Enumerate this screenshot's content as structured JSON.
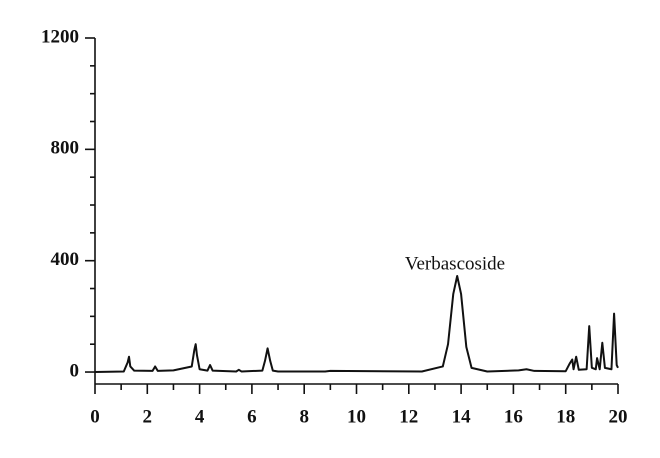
{
  "chart_data": {
    "type": "line",
    "annotation": "Verbascoside",
    "x": [
      0,
      1.1,
      1.25,
      1.3,
      1.35,
      1.5,
      2.2,
      2.3,
      2.4,
      3.0,
      3.7,
      3.8,
      3.85,
      3.9,
      4.0,
      4.3,
      4.4,
      4.5,
      5.4,
      5.5,
      5.6,
      6.4,
      6.5,
      6.6,
      6.7,
      6.8,
      7.0,
      8.8,
      9.0,
      12.5,
      13.3,
      13.5,
      13.7,
      13.85,
      14.0,
      14.2,
      14.4,
      15.0,
      16.2,
      16.5,
      16.8,
      18.0,
      18.15,
      18.25,
      18.3,
      18.4,
      18.5,
      18.8,
      18.9,
      19.0,
      19.15,
      19.2,
      19.3,
      19.4,
      19.5,
      19.75,
      19.85,
      19.95,
      20
    ],
    "values": [
      0,
      2,
      35,
      55,
      20,
      5,
      4,
      20,
      4,
      6,
      20,
      80,
      100,
      60,
      10,
      5,
      25,
      5,
      2,
      8,
      2,
      5,
      40,
      85,
      40,
      5,
      2,
      2,
      4,
      2,
      20,
      100,
      280,
      345,
      280,
      90,
      15,
      2,
      6,
      10,
      4,
      3,
      30,
      45,
      10,
      55,
      8,
      10,
      165,
      15,
      10,
      50,
      10,
      105,
      15,
      10,
      210,
      25,
      15
    ],
    "color": "#111111",
    "xlim": [
      0,
      20
    ],
    "xticks": [
      0,
      2,
      4,
      6,
      8,
      10,
      12,
      14,
      16,
      18,
      20
    ],
    "xminorticks": [
      1,
      3,
      5,
      7,
      9,
      11,
      13,
      15,
      17,
      19
    ],
    "ylim": [
      -43,
      1200
    ],
    "yticks": [
      0,
      400,
      800,
      1200
    ],
    "yminorticks": [
      100,
      200,
      300,
      500,
      600,
      700,
      900,
      1000,
      1100
    ]
  }
}
